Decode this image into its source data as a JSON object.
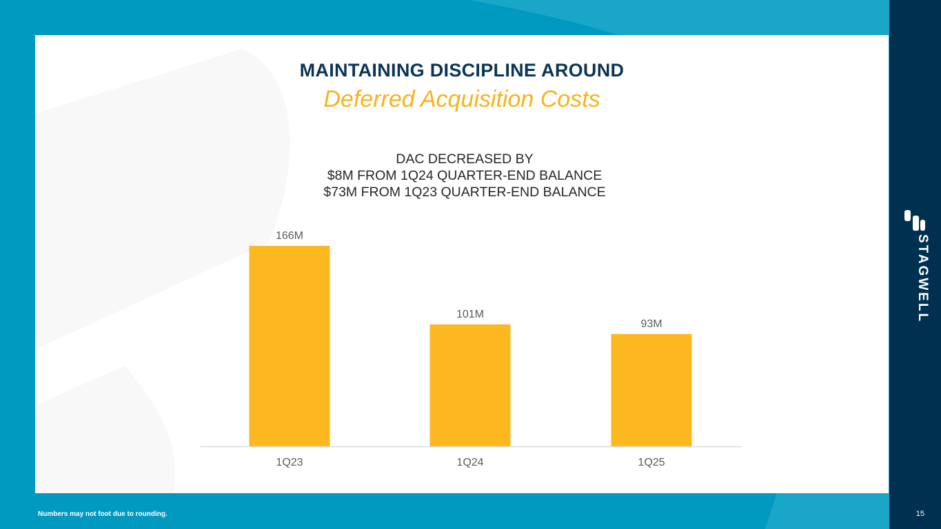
{
  "slide": {
    "title": "MAINTAINING DISCIPLINE AROUND",
    "subtitle": "Deferred Acquisition Costs",
    "note_lines": [
      "DAC DECREASED BY",
      "$8M FROM 1Q24 QUARTER-END BALANCE",
      "$73M FROM 1Q23 QUARTER-END BALANCE"
    ],
    "footnote": "Numbers may not foot due to rounding.",
    "page_number": "15",
    "brand": "STAGWELL"
  },
  "colors": {
    "background": "#0099c0",
    "sidebar": "#00304f",
    "title": "#0b3554",
    "accent": "#f9b21c",
    "bar": "#fdb71f",
    "axis": "#d9d9d9",
    "tick_label": "#595959"
  },
  "chart_data": {
    "type": "bar",
    "categories": [
      "1Q23",
      "1Q24",
      "1Q25"
    ],
    "values": [
      166,
      101,
      93
    ],
    "data_labels": [
      "166M",
      "101M",
      "93M"
    ],
    "title": "",
    "xlabel": "",
    "ylabel": "",
    "ylim": [
      0,
      166
    ],
    "grid": false,
    "legend": "none"
  }
}
